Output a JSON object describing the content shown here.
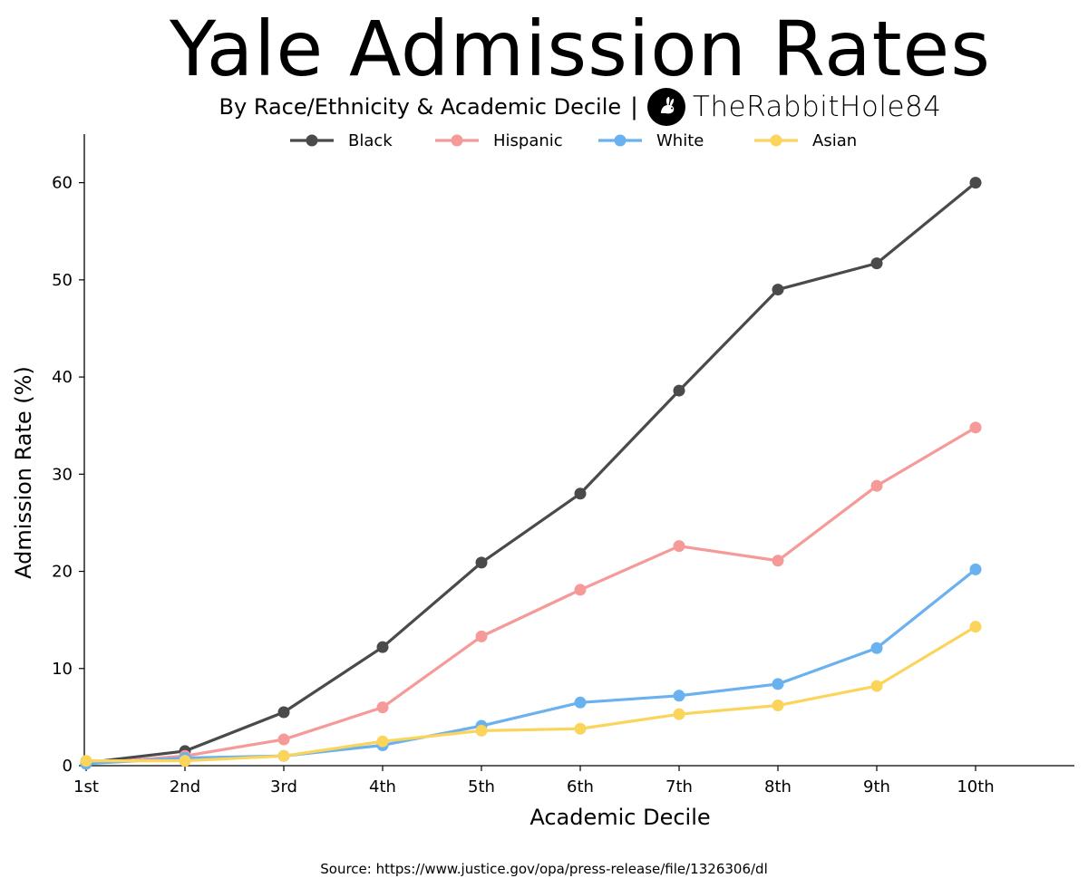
{
  "header": {
    "title": "Yale Admission Rates",
    "subtitle": "By Race/Ethnicity & Academic Decile",
    "separator": "|",
    "brand": "TheRabbitHole84",
    "brand_icon": "rabbit-icon"
  },
  "source": "Source: https://www.justice.gov/opa/press-release/file/1326306/dl",
  "chart_data": {
    "type": "line",
    "title": "Yale Admission Rates",
    "subtitle": "By Race/Ethnicity & Academic Decile",
    "xlabel": "Academic Decile",
    "ylabel": "Admission Rate (%)",
    "categories": [
      "1st",
      "2nd",
      "3rd",
      "4th",
      "5th",
      "6th",
      "7th",
      "8th",
      "9th",
      "10th"
    ],
    "yticks": [
      0,
      10,
      20,
      30,
      40,
      50,
      60
    ],
    "ylim": [
      0,
      65
    ],
    "xlim": [
      0,
      10
    ],
    "grid": false,
    "legend": "top-center",
    "series": [
      {
        "name": "Black",
        "color": "#4a4a4a",
        "values": [
          0.3,
          1.5,
          5.5,
          12.2,
          20.9,
          28.0,
          38.6,
          49.0,
          51.7,
          60.0
        ]
      },
      {
        "name": "Hispanic",
        "color": "#f59a98",
        "values": [
          0.2,
          1.0,
          2.7,
          6.0,
          13.3,
          18.1,
          22.6,
          21.1,
          28.8,
          34.8
        ]
      },
      {
        "name": "White",
        "color": "#6ab1f0",
        "values": [
          0.2,
          0.8,
          1.0,
          2.1,
          4.1,
          6.5,
          7.2,
          8.4,
          12.1,
          20.2
        ]
      },
      {
        "name": "Asian",
        "color": "#fbd45c",
        "values": [
          0.5,
          0.5,
          1.0,
          2.5,
          3.6,
          3.8,
          5.3,
          6.2,
          8.2,
          14.3
        ]
      }
    ]
  }
}
